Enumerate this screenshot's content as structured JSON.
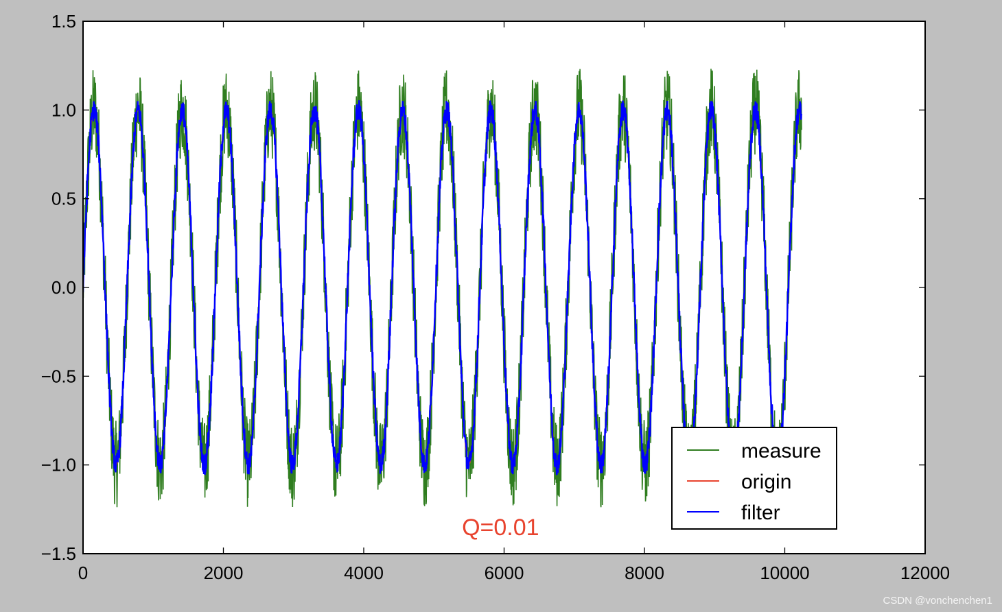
{
  "figure": {
    "background": "#bfbfbf",
    "axes_background": "#ffffff"
  },
  "watermark": "CSDN @vonchenchen1",
  "chart_data": {
    "type": "line",
    "title": "",
    "xlabel": "",
    "ylabel": "",
    "xlim": [
      0,
      12000
    ],
    "ylim": [
      -1.5,
      1.5
    ],
    "xticks": [
      0,
      2000,
      4000,
      6000,
      8000,
      10000,
      12000
    ],
    "xtick_labels": [
      "0",
      "2000",
      "4000",
      "6000",
      "8000",
      "10000",
      "12000"
    ],
    "yticks": [
      1.5,
      1.0,
      0.5,
      0.0,
      -0.5,
      -1.0,
      -1.5
    ],
    "ytick_labels": [
      "1.5",
      "1.0",
      "0.5",
      "0.0",
      "−0.5",
      "−1.0",
      "−1.5"
    ],
    "grid": false,
    "legend_position": "lower-right",
    "annotation": {
      "text": "Q=0.01",
      "x": 5400,
      "y": -1.35,
      "color": "#e8432e"
    },
    "signal": {
      "amplitude": 1.0,
      "period": 628.3,
      "x_start": 0,
      "x_end": 10240,
      "phase": 0
    },
    "series": [
      {
        "name": "measure",
        "color": "#2f7d1f",
        "noise_amplitude": 0.25
      },
      {
        "name": "origin",
        "color": "#e8432e",
        "noise_amplitude": 0.0
      },
      {
        "name": "filter",
        "color": "#0000ff",
        "noise_amplitude": 0.06
      }
    ]
  }
}
